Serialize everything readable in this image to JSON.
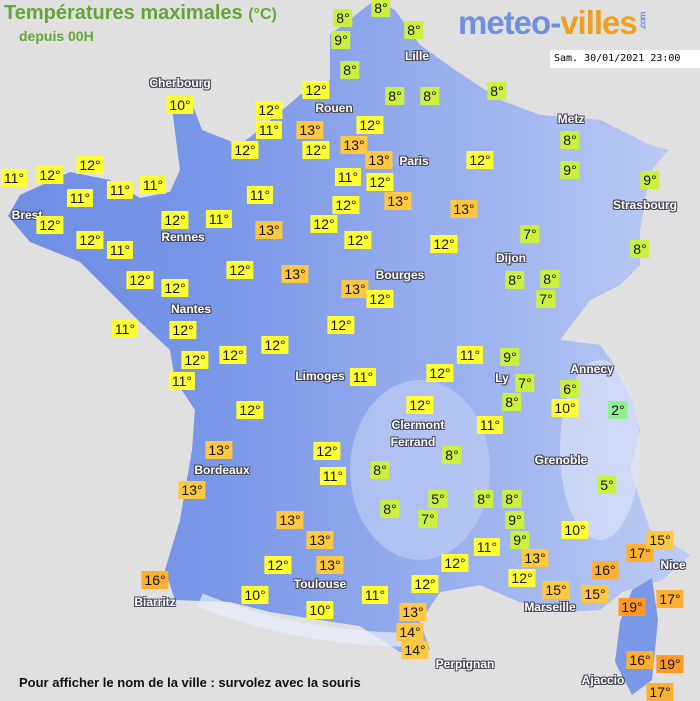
{
  "header": {
    "title": "Températures maximales",
    "unit": "(°C)",
    "subtitle": "depuis 00H"
  },
  "logo": {
    "part1": "meteo-",
    "part2": "villes",
    "suffix": ".com"
  },
  "timestamp": "Sam. 30/01/2021 23:00",
  "footer": "Pour afficher le nom de la ville : survolez avec la souris",
  "colors": {
    "background": "#e1e0e0",
    "land": "#7090e6",
    "title": "#63a638",
    "cold": "#90ee90",
    "cool": "#ccf040",
    "mild": "#ffff33",
    "warm": "#ffc840",
    "hot": "#ffb030",
    "very_hot": "#ff9a28"
  },
  "map": {
    "cities": [
      "Cherbourg",
      "Brest",
      "Rennes",
      "Nantes",
      "Rouen",
      "Paris",
      "Lille",
      "Metz",
      "Strasbourg",
      "Dijon",
      "Bourges",
      "Limoges",
      "Bordeaux",
      "Toulouse",
      "Biarritz",
      "Clermont",
      "Ferrand",
      "Ly",
      "Annecy",
      "Grenoble",
      "Marseille",
      "Nice",
      "Perpignan",
      "Ajaccio"
    ],
    "temperatures": [
      "8°",
      "8°",
      "9°",
      "8°",
      "8°",
      "8°",
      "8°",
      "8°",
      "12°",
      "12°",
      "11°",
      "13°",
      "12°",
      "12°",
      "13°",
      "12°",
      "13°",
      "12°",
      "11°",
      "12°",
      "13°",
      "12°",
      "13°",
      "12°",
      "12°",
      "7°",
      "8°",
      "9°",
      "9°",
      "8°",
      "8°",
      "8°",
      "7°",
      "13°",
      "12°",
      "12°",
      "10°",
      "12°",
      "11°",
      "12°",
      "11°",
      "11°",
      "11°",
      "11°",
      "12°",
      "12°",
      "11°",
      "12°",
      "11°",
      "13°",
      "12°",
      "12°",
      "12°",
      "12°",
      "13°",
      "11°",
      "12°",
      "12°",
      "12°",
      "12°",
      "11°",
      "11°",
      "12°",
      "13°",
      "13°",
      "12°",
      "11°",
      "13°",
      "13°",
      "12°",
      "13°",
      "16°",
      "10°",
      "10°",
      "11°",
      "9°",
      "12°",
      "7°",
      "8°",
      "6°",
      "10°",
      "2°",
      "12°",
      "11°",
      "8°",
      "5°",
      "5°",
      "8°",
      "7°",
      "8°",
      "8°",
      "9°",
      "9°",
      "10°",
      "11°",
      "12°",
      "13°",
      "12°",
      "15°",
      "16°",
      "15°",
      "17°",
      "15°",
      "12°",
      "11°",
      "13°",
      "14°",
      "14°",
      "19°",
      "17°",
      "16°",
      "19°",
      "17°",
      "8°"
    ]
  }
}
